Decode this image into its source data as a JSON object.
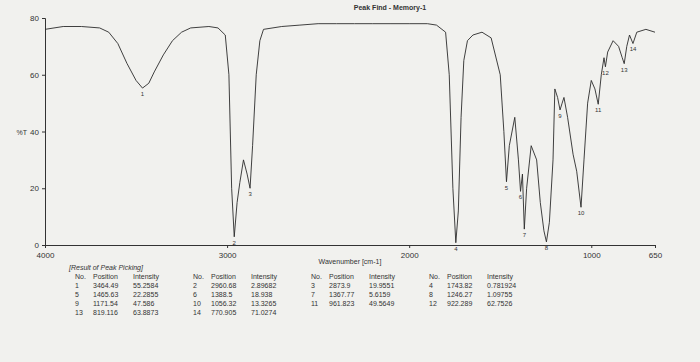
{
  "chart_data": {
    "type": "line",
    "title": "Peak Find - Memory-1",
    "x_label": "Wavenumber [cm-1]",
    "y_label": "%T",
    "x": [
      4000,
      3900,
      3800,
      3700,
      3650,
      3600,
      3550,
      3500,
      3464.49,
      3430,
      3400,
      3350,
      3300,
      3250,
      3200,
      3100,
      3050,
      3010,
      2990,
      2975,
      2960.68,
      2945,
      2930,
      2910,
      2890,
      2873.9,
      2860,
      2840,
      2820,
      2800,
      2700,
      2600,
      2500,
      2400,
      2300,
      2200,
      2100,
      2000,
      1900,
      1850,
      1800,
      1780,
      1760,
      1743.82,
      1730,
      1715,
      1700,
      1680,
      1650,
      1600,
      1550,
      1500,
      1480,
      1465.63,
      1450,
      1420,
      1400,
      1388.5,
      1378,
      1367.77,
      1355,
      1330,
      1300,
      1280,
      1260,
      1246.27,
      1230,
      1210,
      1200,
      1185,
      1171.54,
      1160,
      1150,
      1130,
      1100,
      1080,
      1056.32,
      1040,
      1020,
      1000,
      980,
      961.823,
      945,
      930,
      922.289,
      910,
      880,
      850,
      830,
      819.116,
      805,
      790,
      770.905,
      750,
      700,
      650
    ],
    "values": [
      76,
      77,
      77,
      76.5,
      75,
      71,
      64,
      58,
      55.3,
      57,
      61,
      67,
      72,
      75,
      76.5,
      77,
      76.5,
      74,
      60,
      20,
      2.9,
      15,
      22,
      30,
      25,
      20,
      35,
      60,
      72,
      76,
      77,
      77.5,
      78,
      78,
      78,
      78,
      78,
      78,
      78,
      77.5,
      75,
      60,
      20,
      0.8,
      12,
      45,
      65,
      72,
      74,
      75,
      73,
      60,
      40,
      22.3,
      35,
      45,
      30,
      18.9,
      25,
      5.6,
      20,
      35,
      30,
      15,
      5,
      1.1,
      8,
      30,
      55,
      52,
      47.6,
      50,
      52,
      45,
      32,
      26,
      13.3,
      30,
      50,
      58,
      55,
      49.6,
      60,
      66,
      62.8,
      68,
      72,
      70,
      66,
      63.9,
      70,
      74,
      71,
      75,
      76,
      75
    ],
    "color": "#2b2b2b",
    "xlim": [
      4000,
      650
    ],
    "xticks": [
      4000,
      3000,
      2000,
      1000,
      650
    ],
    "ylim": [
      0,
      80
    ],
    "yticks": [
      0,
      20,
      40,
      60,
      80
    ],
    "grid": false
  },
  "table": {
    "title": "[Result of Peak Picking]",
    "columns": [
      "No.",
      "Position",
      "Intensity"
    ],
    "rows": [
      [
        1,
        3464.49,
        55.2584
      ],
      [
        2,
        2960.68,
        2.89682
      ],
      [
        3,
        2873.9,
        19.9551
      ],
      [
        4,
        1743.82,
        0.781924
      ],
      [
        5,
        1465.63,
        22.2855
      ],
      [
        6,
        1388.5,
        18.938
      ],
      [
        7,
        1367.77,
        5.6159
      ],
      [
        8,
        1246.27,
        1.09755
      ],
      [
        9,
        1171.54,
        47.586
      ],
      [
        10,
        1056.32,
        13.3265
      ],
      [
        11,
        961.823,
        49.5649
      ],
      [
        12,
        922.289,
        62.7526
      ],
      [
        13,
        819.116,
        63.8873
      ],
      [
        14,
        770.905,
        71.0274
      ]
    ]
  }
}
